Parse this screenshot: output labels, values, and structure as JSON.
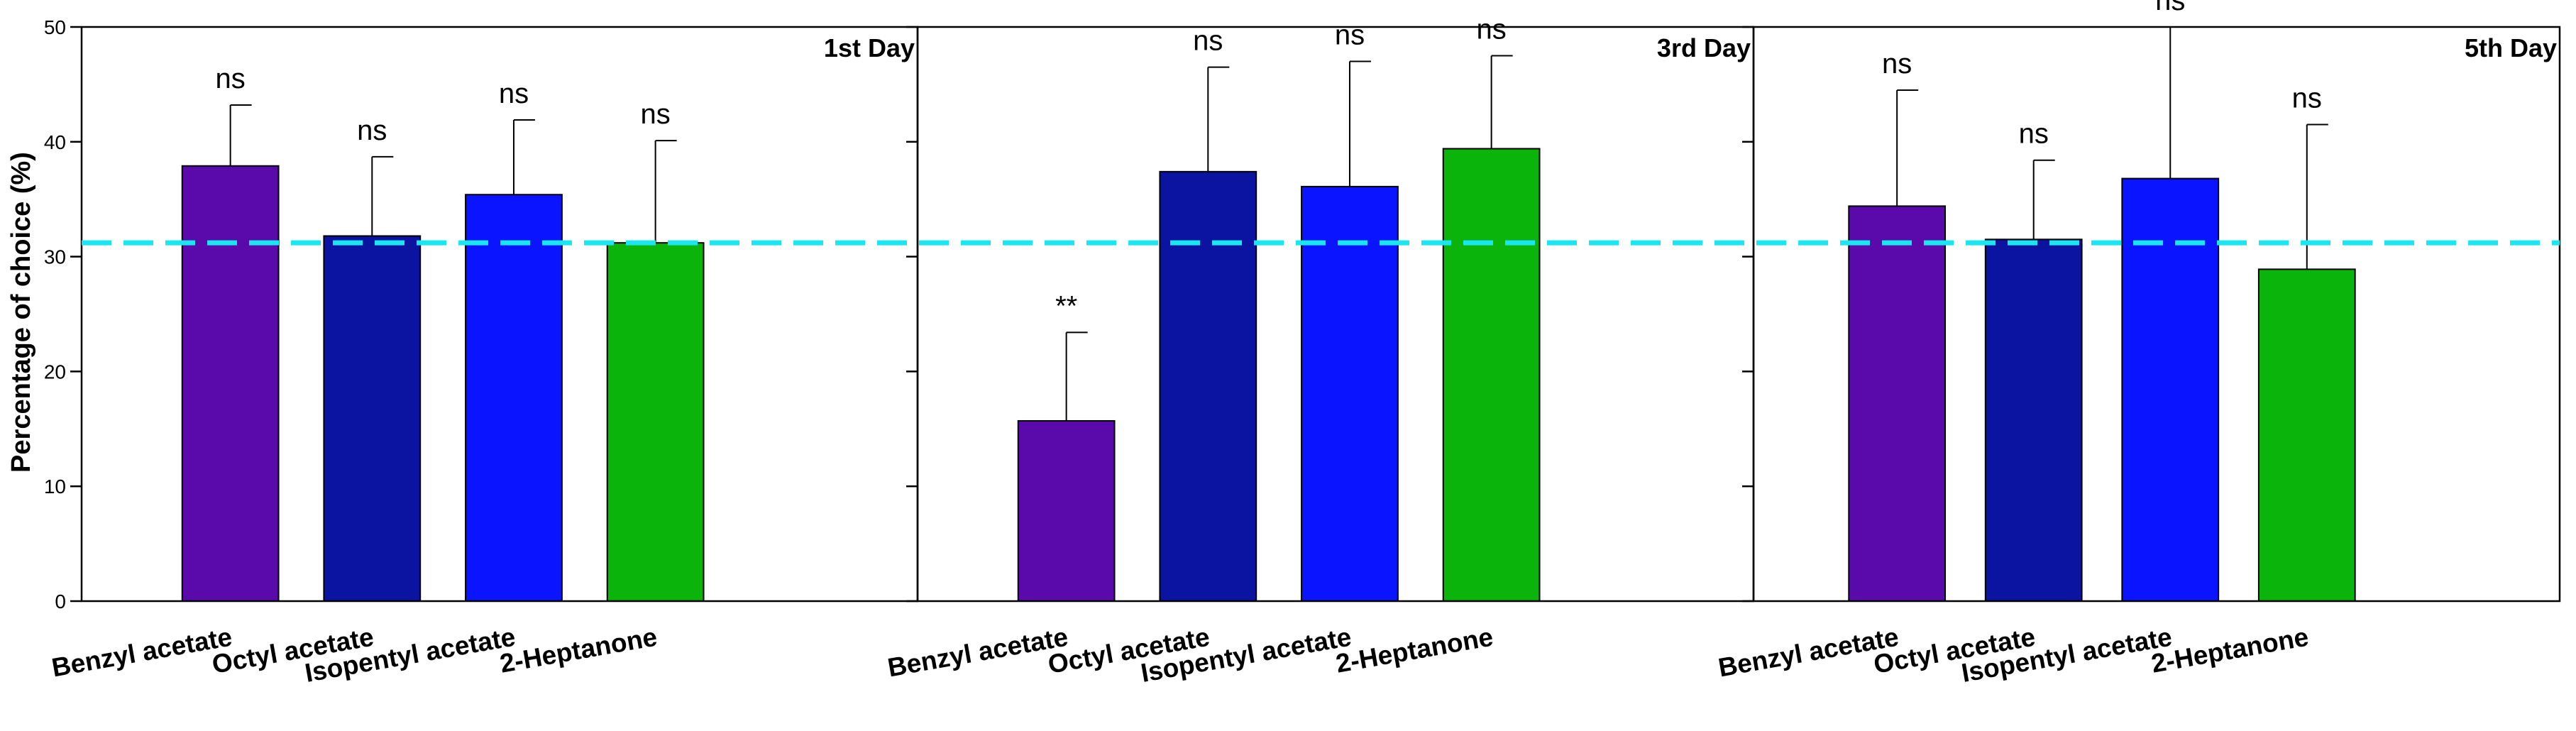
{
  "chart_data": {
    "type": "bar",
    "ylabel": "Percentage of choice (%)",
    "ylim": [
      0,
      50
    ],
    "yticks": [
      0,
      10,
      20,
      30,
      40,
      50
    ],
    "reference_line": {
      "value": 31.2,
      "style": "dashed",
      "color": "#19E6F0"
    },
    "categories": [
      "Benzyl acetate",
      "Octyl acetate",
      "Isopentyl acetate",
      "2-Heptanone"
    ],
    "bar_colors": [
      "#5A0AAA",
      "#0A14A0",
      "#0A14FF",
      "#0AB40A"
    ],
    "panels": [
      {
        "title": "1st Day",
        "values": [
          37.9,
          31.8,
          35.4,
          31.2
        ],
        "errors": [
          5.3,
          6.9,
          6.5,
          8.9
        ],
        "labels": [
          "ns",
          "ns",
          "ns",
          "ns"
        ]
      },
      {
        "title": "3rd Day",
        "values": [
          15.7,
          37.4,
          36.1,
          39.4
        ],
        "errors": [
          7.7,
          9.1,
          10.9,
          8.1
        ],
        "labels": [
          "**",
          "ns",
          "ns",
          "ns"
        ]
      },
      {
        "title": "5th Day",
        "values": [
          34.4,
          31.5,
          36.8,
          28.9
        ],
        "errors": [
          10.1,
          6.9,
          13.2,
          12.6
        ],
        "labels": [
          "ns",
          "ns",
          "ns",
          "ns"
        ]
      }
    ]
  }
}
